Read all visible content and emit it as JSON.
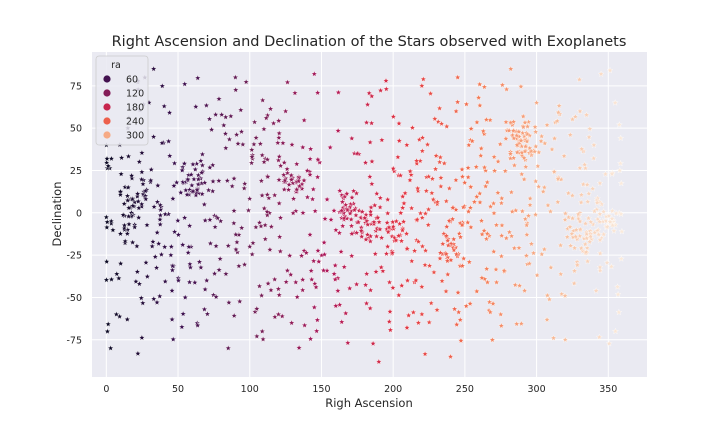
{
  "chart_data": {
    "type": "scatter",
    "title": "Right Ascension and Declination of the Stars observed with Exoplanets",
    "xlabel": "Righ Ascension",
    "ylabel": "Declination",
    "xlim": [
      -10,
      377
    ],
    "ylim": [
      -97,
      95
    ],
    "xticks": [
      0,
      50,
      100,
      150,
      200,
      250,
      300,
      350
    ],
    "yticks": [
      -75,
      -50,
      -25,
      0,
      25,
      50,
      75
    ],
    "grid": true,
    "marker": "star",
    "hue": {
      "name": "ra",
      "legend_placement": "top-left",
      "legend_values": [
        60,
        120,
        180,
        240,
        300
      ],
      "palette": [
        "#0b0924",
        "#3b0f4f",
        "#701f57",
        "#ad1759",
        "#e13342",
        "#f37651",
        "#f6b48f",
        "#faebdd"
      ]
    },
    "clusters": [
      {
        "ra": 20,
        "dec": 5,
        "count": 35
      },
      {
        "ra": 62,
        "dec": 20,
        "count": 30
      },
      {
        "ra": 130,
        "dec": 18,
        "count": 30
      },
      {
        "ra": 170,
        "dec": 0,
        "count": 35
      },
      {
        "ra": 185,
        "dec": -5,
        "count": 25
      },
      {
        "ra": 203,
        "dec": -12,
        "count": 25
      },
      {
        "ra": 240,
        "dec": -20,
        "count": 25
      },
      {
        "ra": 290,
        "dec": 43,
        "count": 60
      },
      {
        "ra": 335,
        "dec": -12,
        "count": 35
      },
      {
        "ra": 350,
        "dec": -2,
        "count": 25
      }
    ],
    "sample_points": [
      [
        0,
        40
      ],
      [
        3,
        -80
      ],
      [
        7,
        -60
      ],
      [
        10,
        -30
      ],
      [
        15,
        50
      ],
      [
        22,
        78
      ],
      [
        33,
        85
      ],
      [
        45,
        -25
      ],
      [
        55,
        -50
      ],
      [
        70,
        -40
      ],
      [
        85,
        -80
      ],
      [
        90,
        80
      ],
      [
        100,
        -20
      ],
      [
        110,
        30
      ],
      [
        120,
        -60
      ],
      [
        125,
        60
      ],
      [
        145,
        82
      ],
      [
        160,
        -55
      ],
      [
        175,
        35
      ],
      [
        190,
        -88
      ],
      [
        195,
        78
      ],
      [
        210,
        -40
      ],
      [
        220,
        75
      ],
      [
        240,
        -85
      ],
      [
        245,
        80
      ],
      [
        265,
        55
      ],
      [
        275,
        -60
      ],
      [
        282,
        85
      ],
      [
        295,
        -30
      ],
      [
        300,
        65
      ],
      [
        315,
        20
      ],
      [
        320,
        -75
      ],
      [
        340,
        40
      ],
      [
        345,
        82
      ],
      [
        355,
        -70
      ],
      [
        358,
        25
      ]
    ],
    "background_count": 760,
    "seed": 7
  }
}
